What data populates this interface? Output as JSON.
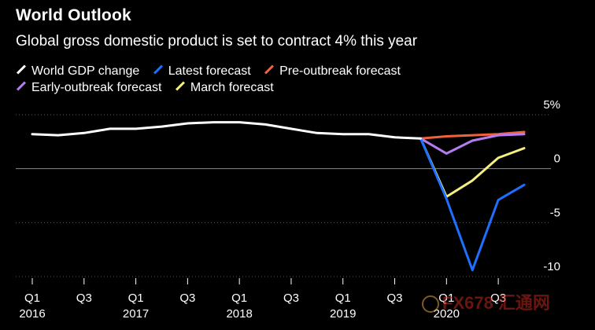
{
  "header": {
    "title": "World Outlook",
    "subtitle": "Global gross domestic product is set to contract 4% this year"
  },
  "watermark": {
    "text": "FX678 汇通网"
  },
  "chart_data": {
    "type": "line",
    "title": "World Outlook",
    "subtitle": "Global gross domestic product is set to contract 4% this year",
    "xlabel": "",
    "ylabel": "",
    "ylim": [
      -10,
      5
    ],
    "yticks": [
      {
        "value": 5,
        "label": "5%"
      },
      {
        "value": 0,
        "label": "0"
      },
      {
        "value": -5,
        "label": "-5"
      },
      {
        "value": -10,
        "label": "-10"
      }
    ],
    "xticks": [
      {
        "value": 0,
        "label": "Q1",
        "year": "2016"
      },
      {
        "value": 2,
        "label": "Q3",
        "year": ""
      },
      {
        "value": 4,
        "label": "Q1",
        "year": "2017"
      },
      {
        "value": 6,
        "label": "Q3",
        "year": ""
      },
      {
        "value": 8,
        "label": "Q1",
        "year": "2018"
      },
      {
        "value": 10,
        "label": "Q3",
        "year": ""
      },
      {
        "value": 12,
        "label": "Q1",
        "year": "2019"
      },
      {
        "value": 14,
        "label": "Q3",
        "year": ""
      },
      {
        "value": 16,
        "label": "Q1",
        "year": "2020"
      },
      {
        "value": 18,
        "label": "Q3",
        "year": ""
      }
    ],
    "legend": [
      {
        "name": "World GDP change",
        "color": "#ffffff"
      },
      {
        "name": "Latest forecast",
        "color": "#1e6fff"
      },
      {
        "name": "Pre-outbreak forecast",
        "color": "#f0623a"
      },
      {
        "name": "Early-outbreak forecast",
        "color": "#b57cf2"
      },
      {
        "name": "March forecast",
        "color": "#f5ee80"
      }
    ],
    "series": [
      {
        "name": "World GDP change",
        "color": "#ffffff",
        "x": [
          0,
          1,
          2,
          3,
          4,
          5,
          6,
          7,
          8,
          9,
          10,
          11,
          12,
          13,
          14,
          15
        ],
        "values": [
          3.2,
          3.1,
          3.3,
          3.7,
          3.7,
          3.9,
          4.2,
          4.3,
          4.3,
          4.1,
          3.7,
          3.3,
          3.2,
          3.2,
          2.9,
          2.8
        ]
      },
      {
        "name": "Latest forecast",
        "color": "#1e6fff",
        "x": [
          15,
          16,
          17,
          18,
          19
        ],
        "values": [
          2.8,
          -2.8,
          -9.4,
          -2.9,
          -1.5
        ]
      },
      {
        "name": "Pre-outbreak forecast",
        "color": "#f0623a",
        "x": [
          15,
          16,
          17,
          18,
          19
        ],
        "values": [
          2.8,
          3.0,
          3.1,
          3.2,
          3.4
        ]
      },
      {
        "name": "Early-outbreak forecast",
        "color": "#b57cf2",
        "x": [
          15,
          16,
          17,
          18,
          19
        ],
        "values": [
          2.8,
          1.4,
          2.6,
          3.1,
          3.2
        ]
      },
      {
        "name": "March forecast",
        "color": "#f5ee80",
        "x": [
          15,
          16,
          17,
          18,
          19
        ],
        "values": [
          2.8,
          -2.6,
          -1.1,
          1.0,
          1.9
        ]
      }
    ]
  }
}
